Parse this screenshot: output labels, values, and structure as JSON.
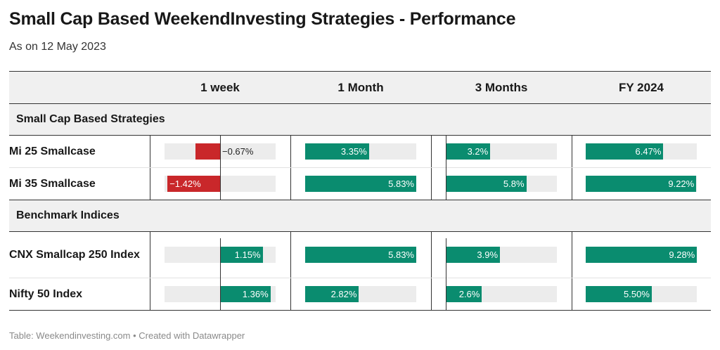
{
  "title": "Small Cap Based WeekendInvesting Strategies - Performance",
  "subtitle": "As on 12 May 2023",
  "footer": "Table: Weekendinvesting.com • Created with Datawrapper",
  "colors": {
    "positive": "#0a8c6f",
    "negative": "#c9272a",
    "track": "#ececec",
    "header_bg": "#f0f0f0"
  },
  "columns": [
    "1 week",
    "1 Month",
    "3 Months",
    "FY 2024"
  ],
  "chart_data": {
    "type": "table",
    "columns": [
      "1 week",
      "1 Month",
      "3 Months",
      "FY 2024"
    ],
    "groups": [
      {
        "name": "Small Cap Based Strategies",
        "rows": [
          {
            "label": "Mi 25 Smallcase",
            "values": [
              -0.67,
              3.35,
              3.2,
              6.47
            ],
            "display": [
              "−0.67%",
              "3.35%",
              "3.2%",
              "6.47%"
            ]
          },
          {
            "label": "Mi 35 Smallcase",
            "values": [
              -1.42,
              5.83,
              5.8,
              9.22
            ],
            "display": [
              "−1.42%",
              "5.83%",
              "5.8%",
              "9.22%"
            ]
          }
        ]
      },
      {
        "name": "Benchmark Indices",
        "rows": [
          {
            "label": "CNX Smallcap 250 Index",
            "values": [
              1.15,
              5.83,
              3.9,
              9.28
            ],
            "display": [
              "1.15%",
              "5.83%",
              "3.9%",
              "9.28%"
            ]
          },
          {
            "label": "Nifty 50 Index",
            "values": [
              1.36,
              2.82,
              2.6,
              5.5
            ],
            "display": [
              "1.36%",
              "2.82%",
              "2.6%",
              "5.50%"
            ]
          }
        ]
      }
    ]
  }
}
